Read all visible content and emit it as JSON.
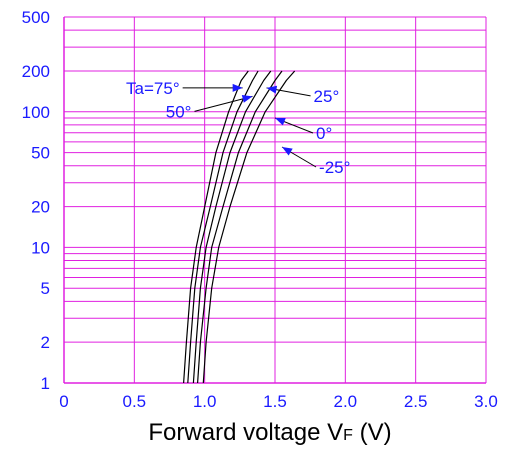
{
  "chart_data": {
    "type": "line",
    "title": "",
    "xlabel": "Forward voltage V",
    "xlabel_sub": "F",
    "xlabel_unit": " (V)",
    "ylabel": "",
    "xlim": [
      0,
      3.0
    ],
    "ylim": [
      1,
      500
    ],
    "y_scale": "log",
    "grid": true,
    "x_ticks": [
      {
        "v": 0,
        "label": "0"
      },
      {
        "v": 0.5,
        "label": "0.5"
      },
      {
        "v": 1.0,
        "label": "1.0"
      },
      {
        "v": 1.5,
        "label": "1.5"
      },
      {
        "v": 2.0,
        "label": "2.0"
      },
      {
        "v": 2.5,
        "label": "2.5"
      },
      {
        "v": 3.0,
        "label": "3.0"
      }
    ],
    "y_ticks": [
      {
        "v": 1,
        "label": "1"
      },
      {
        "v": 2,
        "label": "2"
      },
      {
        "v": 5,
        "label": "5"
      },
      {
        "v": 10,
        "label": "10"
      },
      {
        "v": 20,
        "label": "20"
      },
      {
        "v": 50,
        "label": "50"
      },
      {
        "v": 100,
        "label": "100"
      },
      {
        "v": 200,
        "label": "200"
      },
      {
        "v": 500,
        "label": "500"
      }
    ],
    "series": [
      {
        "name": "Ta=75°",
        "x": [
          0.85,
          0.87,
          0.9,
          0.94,
          1.0,
          1.08,
          1.17,
          1.26,
          1.31
        ],
        "y": [
          1,
          2,
          5,
          10,
          20,
          50,
          100,
          170,
          200
        ]
      },
      {
        "name": "50°",
        "x": [
          0.88,
          0.9,
          0.93,
          0.97,
          1.04,
          1.13,
          1.23,
          1.34,
          1.38
        ],
        "y": [
          1,
          2,
          5,
          10,
          20,
          50,
          100,
          170,
          200
        ]
      },
      {
        "name": "25°",
        "x": [
          0.92,
          0.94,
          0.97,
          1.01,
          1.08,
          1.18,
          1.29,
          1.42,
          1.47
        ],
        "y": [
          1,
          2,
          5,
          10,
          20,
          50,
          100,
          170,
          200
        ]
      },
      {
        "name": "0°",
        "x": [
          0.95,
          0.97,
          1.01,
          1.05,
          1.13,
          1.24,
          1.36,
          1.5,
          1.55
        ],
        "y": [
          1,
          2,
          5,
          10,
          20,
          50,
          100,
          170,
          200
        ]
      },
      {
        "name": "-25°",
        "x": [
          0.99,
          1.01,
          1.05,
          1.1,
          1.18,
          1.3,
          1.43,
          1.58,
          1.64
        ],
        "y": [
          1,
          2,
          5,
          10,
          20,
          50,
          100,
          170,
          200
        ]
      }
    ],
    "annotations": [
      {
        "text": "Ta=75°",
        "point": [
          1.27,
          150
        ],
        "anchor": "end"
      },
      {
        "text": "50°",
        "point": [
          1.34,
          130
        ],
        "anchor": "end"
      },
      {
        "text": "25°",
        "point": [
          1.44,
          150
        ],
        "anchor": "start"
      },
      {
        "text": "0°",
        "point": [
          1.5,
          90
        ],
        "anchor": "start"
      },
      {
        "text": "-25°",
        "point": [
          1.55,
          55
        ],
        "anchor": "start"
      }
    ],
    "colors": {
      "grid": "#e020e0",
      "curve": "#000000",
      "text": "#1a1aff",
      "label": "#000000"
    }
  }
}
